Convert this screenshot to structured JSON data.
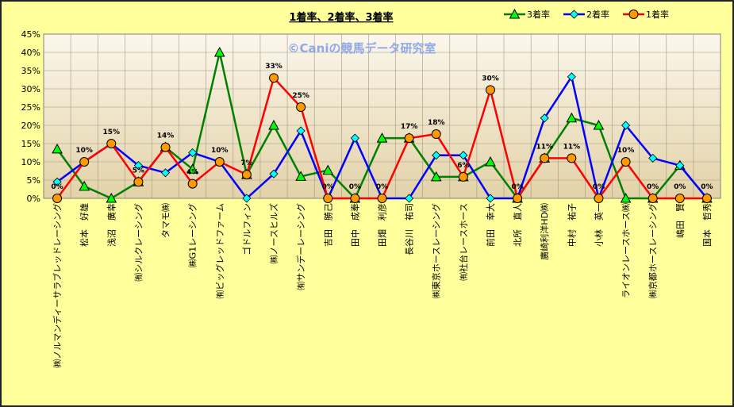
{
  "chart_data": {
    "type": "line",
    "title": "1着率、2着率、3着率",
    "watermark": "©Caniの競馬データ研究室",
    "ylim": [
      0,
      45
    ],
    "yticks": [
      "0%",
      "5%",
      "10%",
      "15%",
      "20%",
      "25%",
      "30%",
      "35%",
      "40%",
      "45%"
    ],
    "grid": true,
    "legend_position": "top-right",
    "categories": [
      "㈱ノルマンディーサラブレッドレーシング",
      "松本　好雄",
      "浅沼　廣幸",
      "㈲シルクレーシング",
      "タマモ㈱",
      "㈱G1レーシング",
      "㈲ビッグレッドファーム",
      "ゴドルフィン",
      "㈱ノースヒルズ",
      "㈲サンデーレーシング",
      "吉田　勝己",
      "田中　成奉",
      "田畑　利彦",
      "長谷川　祐司",
      "㈱東京ホースレーシング",
      "㈲社台レースホース",
      "前田　幸大",
      "北所　直人",
      "廣崎利洋HD㈱",
      "中村　祐子",
      "小林　英一",
      "ライオンレースホース㈱",
      "㈱京都ホースレーシング",
      "嶋田　賢",
      "国本　哲秀"
    ],
    "series": [
      {
        "name": "3着率",
        "color": "#008000",
        "marker": "triangle",
        "marker_color": "#00FF00",
        "values": [
          13.5,
          3.3,
          0,
          4.5,
          14,
          8,
          40,
          6.5,
          20,
          6,
          7.7,
          0,
          16.5,
          16.5,
          5.9,
          5.9,
          10,
          0,
          11,
          22,
          20,
          0,
          0,
          9,
          0
        ]
      },
      {
        "name": "2着率",
        "color": "#0000FF",
        "marker": "diamond",
        "marker_color": "#00FFFF",
        "values": [
          4.5,
          10,
          15,
          9,
          7,
          12.5,
          10,
          0,
          6.7,
          18.5,
          0,
          16.5,
          0,
          0,
          11.8,
          11.8,
          0,
          0,
          22,
          33.3,
          0,
          20,
          11,
          9,
          0
        ]
      },
      {
        "name": "1着率",
        "color": "#FF0000",
        "marker": "circle",
        "marker_color": "#FF9900",
        "values": [
          0,
          10,
          15,
          4.5,
          14,
          4,
          10,
          6.5,
          33,
          25,
          0,
          0,
          0,
          16.5,
          17.6,
          5.9,
          29.7,
          0,
          11,
          11,
          0,
          10,
          0,
          0,
          0
        ],
        "data_labels": [
          "0%",
          "10%",
          "15%",
          "5%",
          "14%",
          "4%",
          "10%",
          "7%",
          "33%",
          "25%",
          "0%",
          "0%",
          "0%",
          "17%",
          "18%",
          "6%",
          "30%",
          "0%",
          "11%",
          "11%",
          "0%",
          "10%",
          "0%",
          "0%",
          "0%"
        ]
      }
    ]
  }
}
